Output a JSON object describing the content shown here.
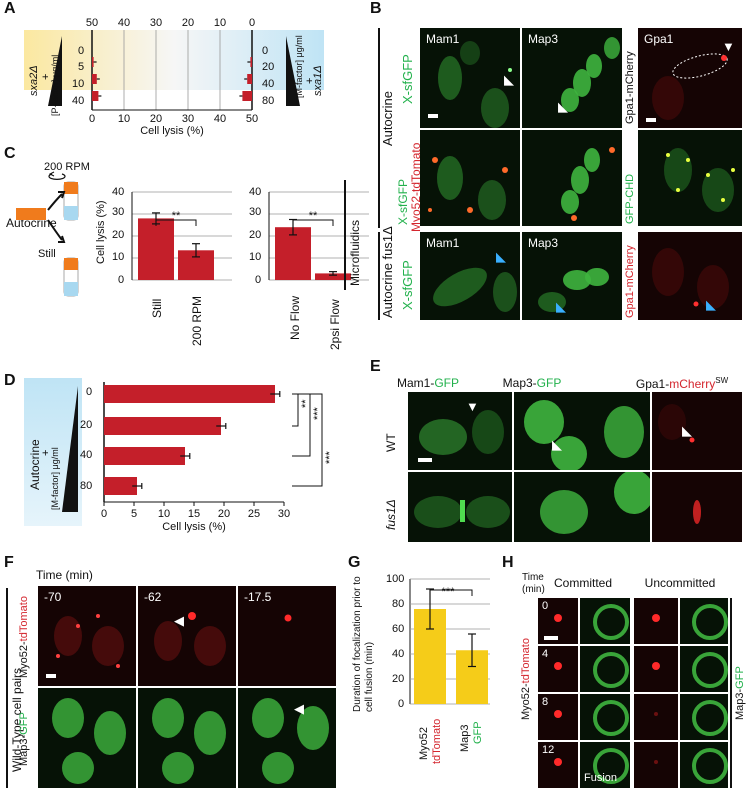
{
  "colors": {
    "bar_red": "#c41f2a",
    "bar_yellow": "#f5cc19",
    "gfp": "#22b14c",
    "tomato": "#d4262e",
    "arrow_blue": "#3ab0ff"
  },
  "panels": {
    "a": "A",
    "b": "B",
    "c": "C",
    "d": "D",
    "e": "E",
    "f": "F",
    "g": "G",
    "h": "H"
  },
  "panel_a": {
    "top_ticks": [
      "50",
      "40",
      "30",
      "20",
      "10",
      "0"
    ],
    "bottom_ticks": [
      "0",
      "10",
      "20",
      "30",
      "40",
      "50"
    ],
    "xlabel": "Cell lysis (%)",
    "left_strain": "sxa2Δ",
    "left_conc_label": "[P-factor] μg/ml",
    "left_levels": [
      "0",
      "5",
      "10",
      "40"
    ],
    "right_strain": "sxa1Δ",
    "right_conc_label": "[M-factor] μg/ml",
    "right_levels": [
      "0",
      "20",
      "40",
      "80"
    ],
    "plus": "+"
  },
  "panel_b": {
    "row1_label": "X-sfGFP",
    "row2_label_a": "X-sfGFP",
    "row2_label_b": "Myo52-tdTomato",
    "row3_label": "X-sfGFP",
    "group1": "Autocrine",
    "group2": "Autocrine fus1Δ",
    "mam1": "Mam1",
    "map3": "Map3",
    "gpa1": "Gpa1",
    "gpa1_r1": "Gpa1-mCherry",
    "gpa1_r2": "GFP-CHD",
    "gpa1_r3": "Gpa1-mCherry",
    "sw": "SW"
  },
  "panel_c": {
    "setup_top": "200 RPM",
    "setup_left": "Autocrine",
    "setup_bottom": "Still",
    "ylabel": "Cell lysis (%)",
    "yticks": [
      "0",
      "10",
      "20",
      "30",
      "40"
    ],
    "sig": "**",
    "side_label": "Microfluidics"
  },
  "panel_d": {
    "label_a": "Autocrine",
    "label_b": "+",
    "label_c": "[M-factor] μg/ml",
    "sig1": "**",
    "sig2": "***",
    "sig3": "***"
  },
  "panel_e": {
    "col1": "Mam1-GFP",
    "col2": "Map3-GFP",
    "col3": "Gpa1-mCherry",
    "sw": "SW",
    "row1": "WT",
    "row2": "fus1Δ"
  },
  "panel_f": {
    "time_label": "Time (min)",
    "t1": "-70",
    "t2": "-62",
    "t3": "-17.5",
    "row1": "Myo52-tdTomato",
    "row2": "Map3-GFP",
    "side": "Wild-Type cell pairs"
  },
  "panel_g": {
    "ylabel": "Duration of focalization prior to cell fusion (min)",
    "yticks": [
      "0",
      "20",
      "40",
      "60",
      "80",
      "100"
    ],
    "sig": "***"
  },
  "panel_h": {
    "time_label_a": "Time",
    "time_label_b": "(min)",
    "col1": "Committed",
    "col2": "Uncommitted",
    "times": [
      "0",
      "4",
      "8",
      "12"
    ],
    "fusion": "Fusion",
    "left_label": "Myo52-tdTomato",
    "right_label": "Map3-GFP"
  },
  "chart_data": [
    {
      "type": "bar",
      "panel": "A-left",
      "categories": [
        "0",
        "5",
        "10",
        "40"
      ],
      "values": [
        0,
        0.5,
        1.5,
        2
      ],
      "xlabel": "Cell lysis (%)",
      "xlim": [
        0,
        50
      ]
    },
    {
      "type": "bar",
      "panel": "A-right",
      "categories": [
        "0",
        "20",
        "40",
        "80"
      ],
      "values": [
        0,
        0.5,
        1.5,
        3
      ],
      "xlim": [
        0,
        50
      ]
    },
    {
      "type": "bar",
      "panel": "C-left",
      "categories": [
        "Still",
        "200 RPM"
      ],
      "values": [
        28,
        13.5
      ],
      "errors": [
        2.5,
        3
      ],
      "ylabel": "Cell lysis (%)",
      "ylim": [
        0,
        40
      ]
    },
    {
      "type": "bar",
      "panel": "C-right",
      "categories": [
        "No Flow",
        "2psi Flow"
      ],
      "values": [
        24,
        3
      ],
      "errors": [
        3.5,
        0.8
      ],
      "ylim": [
        0,
        40
      ]
    },
    {
      "type": "bar",
      "panel": "D",
      "categories": [
        "0",
        "20",
        "40",
        "80"
      ],
      "values": [
        28.5,
        19.5,
        13.5,
        5.5
      ],
      "errors": [
        0.8,
        0.8,
        0.8,
        0.8
      ],
      "xlabel": "Cell lysis (%)",
      "xticks": [
        "0",
        "5",
        "10",
        "15",
        "20",
        "25",
        "30"
      ],
      "xlim": [
        0,
        30
      ]
    },
    {
      "type": "bar",
      "panel": "G",
      "categories": [
        "Myo52-tdTomato",
        "Map3-GFP"
      ],
      "cat_parts": [
        [
          "Myo52",
          "tdTomato"
        ],
        [
          "Map3",
          "GFP"
        ]
      ],
      "values": [
        76,
        43
      ],
      "errors": [
        16,
        13
      ],
      "ylim": [
        0,
        100
      ]
    }
  ]
}
